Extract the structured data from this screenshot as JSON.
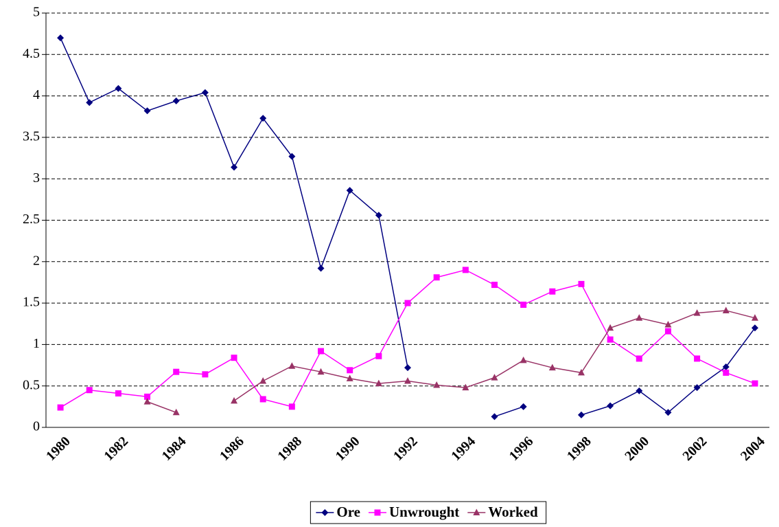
{
  "chart_data": {
    "type": "line",
    "categories": [
      "1980",
      null,
      "1982",
      null,
      "1984",
      null,
      "1986",
      null,
      "1988",
      null,
      "1990",
      null,
      "1992",
      null,
      "1994",
      null,
      "1996",
      null,
      "1998",
      null,
      "2000",
      null,
      "2002",
      null,
      "2004"
    ],
    "series": [
      {
        "name": "Ore",
        "color": "#000080",
        "marker": "diamond",
        "values": [
          4.7,
          3.92,
          4.09,
          3.82,
          3.94,
          4.04,
          3.14,
          3.73,
          3.27,
          1.92,
          2.86,
          2.56,
          0.72,
          null,
          null,
          0.13,
          0.25,
          null,
          0.15,
          0.26,
          0.44,
          0.18,
          0.48,
          0.73,
          1.2
        ]
      },
      {
        "name": "Unwrought",
        "color": "#ff00ff",
        "marker": "square",
        "values": [
          0.24,
          0.45,
          0.41,
          0.37,
          0.67,
          0.64,
          0.84,
          0.34,
          0.25,
          0.92,
          0.69,
          0.86,
          1.5,
          1.81,
          1.9,
          1.72,
          1.48,
          1.64,
          1.73,
          1.06,
          0.83,
          1.16,
          0.83,
          0.66,
          0.53
        ]
      },
      {
        "name": "Worked",
        "color": "#993366",
        "marker": "triangle",
        "values": [
          null,
          null,
          null,
          0.31,
          0.18,
          null,
          0.32,
          0.56,
          0.74,
          0.67,
          0.59,
          0.53,
          0.56,
          0.51,
          0.48,
          0.6,
          0.81,
          0.72,
          0.66,
          1.2,
          1.32,
          1.24,
          1.38,
          1.41,
          1.32
        ]
      }
    ],
    "ylim": [
      0,
      5
    ],
    "yticks": [
      0,
      0.5,
      1,
      1.5,
      2,
      2.5,
      3,
      3.5,
      4,
      4.5,
      5
    ],
    "grid": true,
    "legend": "bottom"
  }
}
